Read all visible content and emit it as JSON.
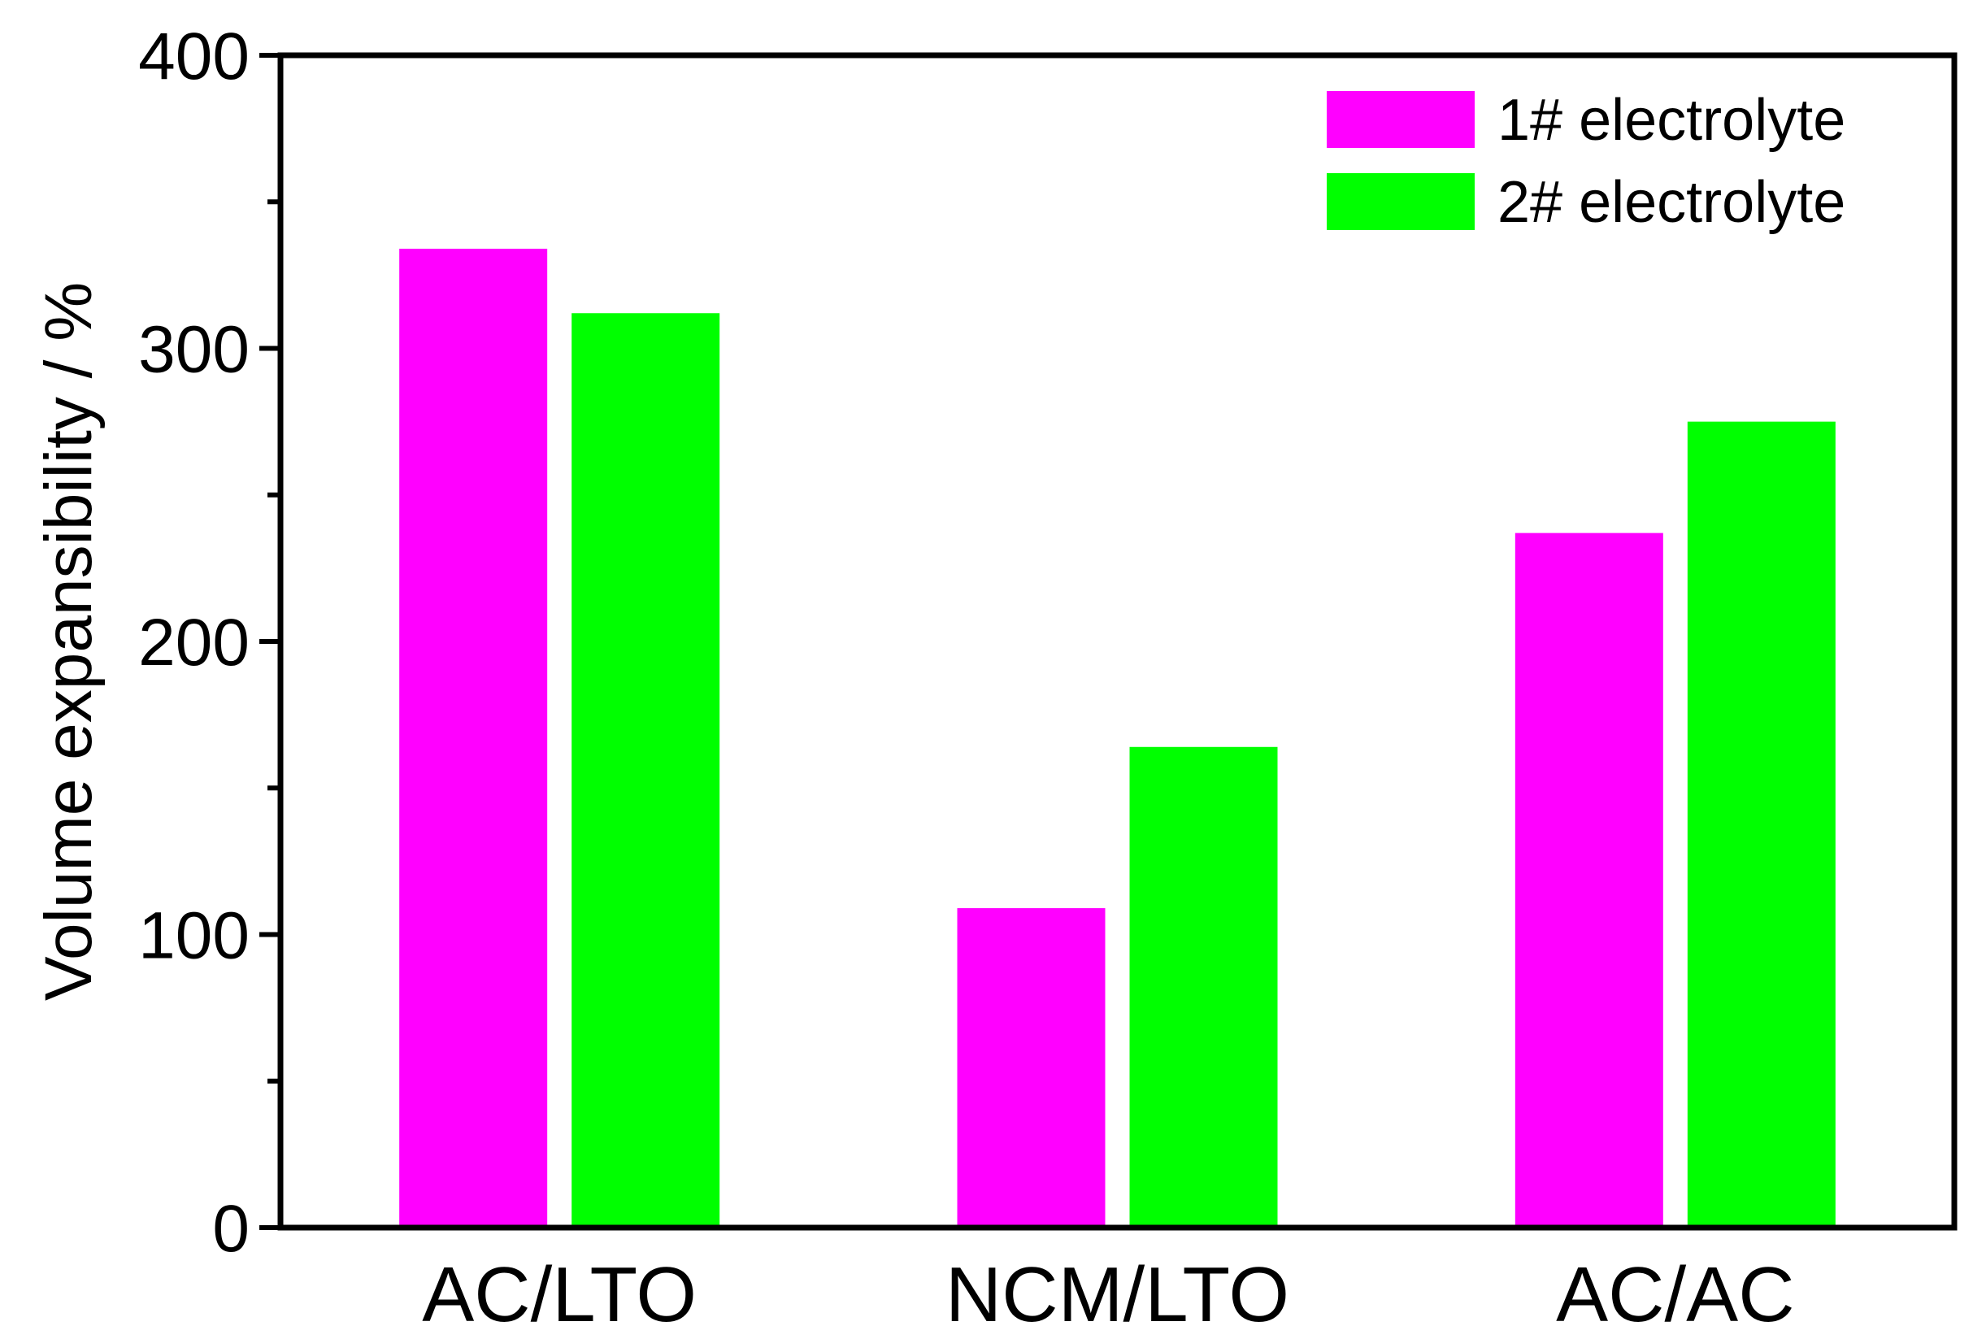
{
  "chart_data": {
    "type": "bar",
    "categories": [
      "AC/LTO",
      "NCM/LTO",
      "AC/AC"
    ],
    "series": [
      {
        "name": "1# electrolyte",
        "color": "#ff00ff",
        "values": [
          334,
          109,
          237
        ]
      },
      {
        "name": "2# electrolyte",
        "color": "#00ff00",
        "values": [
          312,
          164,
          275
        ]
      }
    ],
    "ylabel": "Volume expansibility / %",
    "ylim": [
      0,
      400
    ],
    "yticks": [
      "0",
      "100",
      "200",
      "300",
      "400"
    ],
    "grid": false,
    "legend_position": "top-right"
  }
}
